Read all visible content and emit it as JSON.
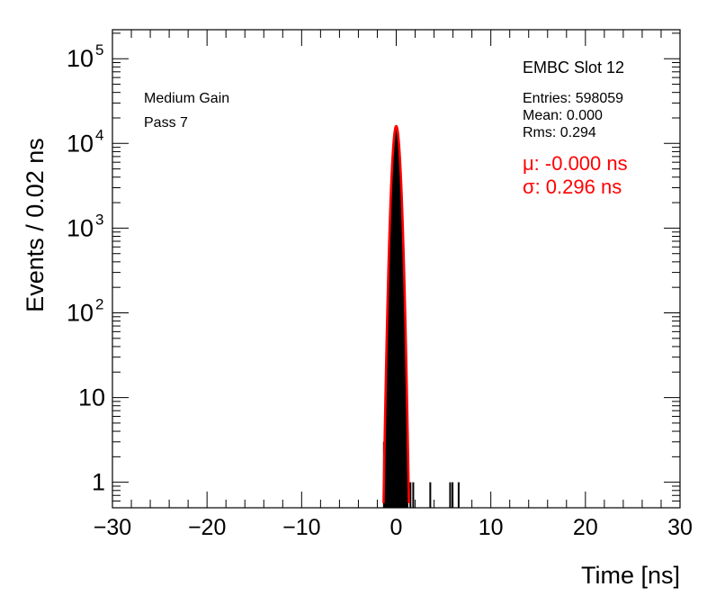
{
  "chart_data": {
    "type": "histogram",
    "title": "",
    "xlabel": "Time [ns]",
    "ylabel": "Events / 0.02 ns",
    "xlim": [
      -30,
      30
    ],
    "ylim": [
      0.5,
      220000
    ],
    "yscale": "log",
    "grid": false,
    "x_ticks": [
      {
        "value": -30,
        "label": "−30"
      },
      {
        "value": -20,
        "label": "−20"
      },
      {
        "value": -10,
        "label": "−10"
      },
      {
        "value": 0,
        "label": "0"
      },
      {
        "value": 10,
        "label": "10"
      },
      {
        "value": 20,
        "label": "20"
      },
      {
        "value": 30,
        "label": "30"
      }
    ],
    "y_ticks": [
      {
        "value": 1,
        "label": "1",
        "exp": ""
      },
      {
        "value": 10,
        "label": "10",
        "exp": ""
      },
      {
        "value": 100,
        "label": "10",
        "exp": "2"
      },
      {
        "value": 1000,
        "label": "10",
        "exp": "3"
      },
      {
        "value": 10000,
        "label": "10",
        "exp": "4"
      },
      {
        "value": 100000,
        "label": "10",
        "exp": "5"
      }
    ],
    "annotations": {
      "gain": "Medium Gain",
      "pass": "Pass 7",
      "slot": "EMBC Slot 12"
    },
    "stats": {
      "entries": "Entries: 598059",
      "mean": "Mean: 0.000",
      "rms": "Rms: 0.294"
    },
    "fit": {
      "mu_label": "μ: -0.000 ns",
      "sigma_label": "σ: 0.296 ns",
      "mu": 0.0,
      "sigma": 0.296,
      "amplitude": 16000,
      "color": "#ff0000"
    },
    "histogram_color": "#000000",
    "outlier_bins": [
      {
        "x": -1.3,
        "y": 3
      },
      {
        "x": -1.1,
        "y": 1
      },
      {
        "x": 1.5,
        "y": 1
      },
      {
        "x": 1.8,
        "y": 1
      },
      {
        "x": 3.6,
        "y": 1
      },
      {
        "x": 5.7,
        "y": 1
      },
      {
        "x": 5.95,
        "y": 1
      },
      {
        "x": 6.6,
        "y": 1
      }
    ]
  }
}
